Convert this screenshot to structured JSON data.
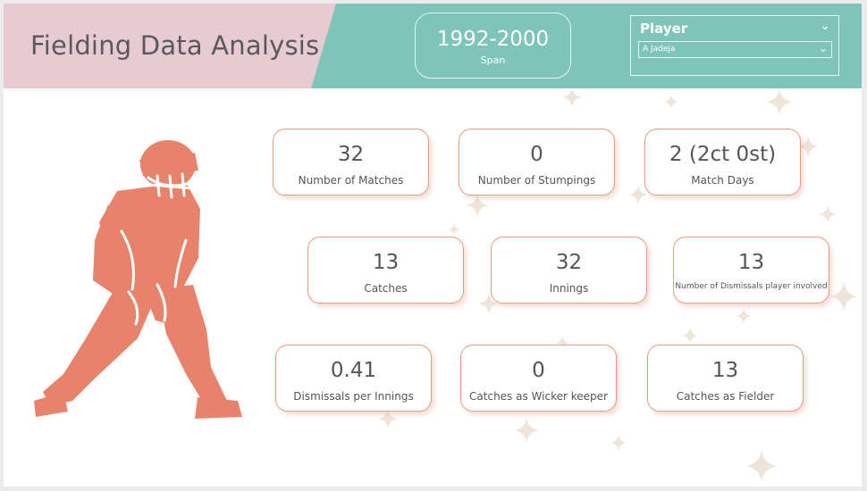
{
  "header": {
    "title": "Fielding Data Analysis",
    "span": {
      "value": "1992-2000",
      "label": "Span"
    },
    "player_slicer": {
      "title": "Player",
      "selected": "A Jadeja"
    }
  },
  "cards": [
    {
      "value": "32",
      "label": "Number of Matches"
    },
    {
      "value": "0",
      "label": "Number of Stumpings"
    },
    {
      "value": "2 (2ct 0st)",
      "label": "Match Days"
    },
    {
      "value": "13",
      "label": "Catches"
    },
    {
      "value": "32",
      "label": "Innings"
    },
    {
      "value": "13",
      "label": "Number of Dismissals player involved"
    },
    {
      "value": "0.41",
      "label": "Dismissals per Innings"
    },
    {
      "value": "0",
      "label": "Catches as Wicker keeper"
    },
    {
      "value": "13",
      "label": "Catches as Fielder"
    }
  ],
  "colors": {
    "header_teal": "#7fc4b8",
    "header_pink": "#e8cbd2",
    "accent_salmon": "#e8836b",
    "text": "#555555"
  },
  "icons": {
    "player": "cricket-wicketkeeper-silhouette",
    "slicer_toggle": "chevron-down-icon"
  }
}
